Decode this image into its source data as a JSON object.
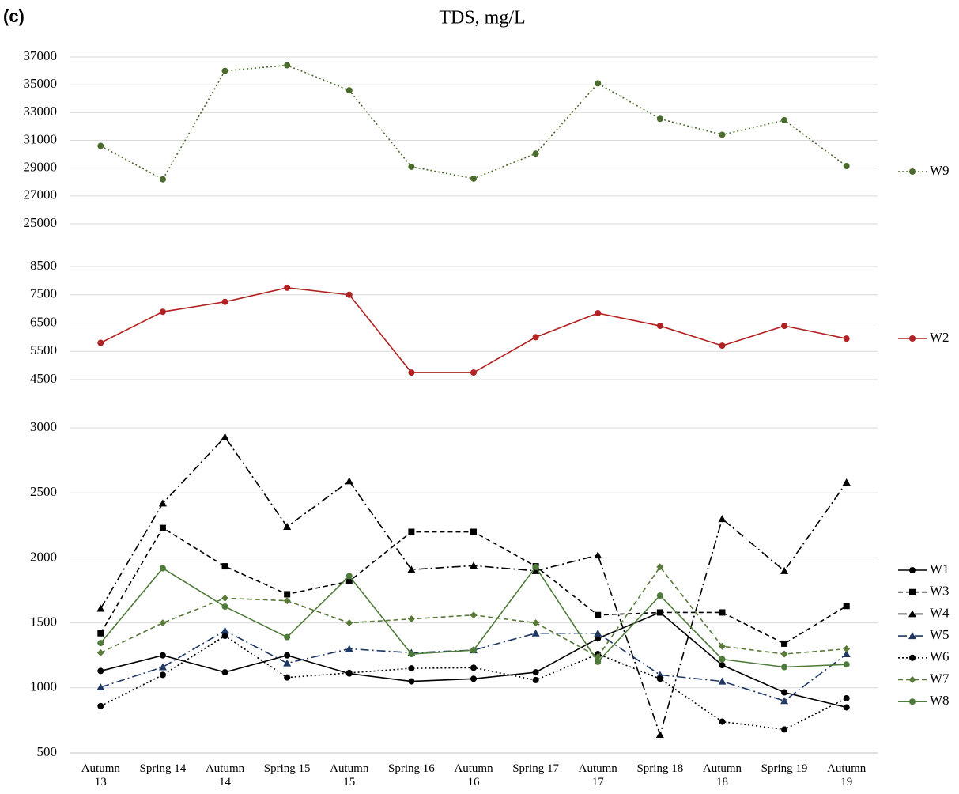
{
  "label": "(c)",
  "chart_data": [
    {
      "type": "line",
      "title": "TDS, mg/L",
      "ylim": [
        25000,
        37000
      ],
      "yticks": [
        25000,
        27000,
        29000,
        31000,
        33000,
        35000,
        37000
      ],
      "grid": true,
      "legend": "right",
      "series": [
        {
          "name": "W9",
          "color": "#4b6b2c",
          "dash": "dotted",
          "marker": "circle",
          "values": [
            30600,
            28200,
            36000,
            36400,
            34600,
            29100,
            28250,
            30050,
            35100,
            32550,
            31400,
            32450,
            29150
          ]
        }
      ]
    },
    {
      "type": "line",
      "ylim": [
        4500,
        8500
      ],
      "yticks": [
        4500,
        5500,
        6500,
        7500,
        8500
      ],
      "grid": true,
      "legend": "right",
      "series": [
        {
          "name": "W2",
          "color": "#b22222",
          "dash": "solid",
          "marker": "circle",
          "values": [
            5800,
            6900,
            7250,
            7750,
            7500,
            4750,
            4750,
            6000,
            6850,
            6400,
            5700,
            6400,
            5950
          ]
        }
      ]
    },
    {
      "type": "line",
      "ylim": [
        500,
        3000
      ],
      "yticks": [
        500,
        1000,
        1500,
        2000,
        2500,
        3000
      ],
      "grid": true,
      "legend": "right",
      "categories": [
        "Autumn\n13",
        "Spring 14",
        "Autumn\n14",
        "Spring 15",
        "Autumn\n15",
        "Spring 16",
        "Autumn\n16",
        "Spring 17",
        "Autumn\n17",
        "Spring 18",
        "Autumn\n18",
        "Spring 19",
        "Autumn\n19"
      ],
      "series": [
        {
          "name": "W1",
          "color": "#000000",
          "dash": "solid",
          "marker": "circle",
          "values": [
            1130,
            1250,
            1120,
            1250,
            1110,
            1050,
            1070,
            1120,
            1380,
            1580,
            1175,
            965,
            850
          ]
        },
        {
          "name": "W3",
          "color": "#000000",
          "dash": "dashed",
          "marker": "square",
          "values": [
            1420,
            2230,
            1935,
            1720,
            1820,
            2200,
            2200,
            1935,
            1560,
            1580,
            1580,
            1340,
            1630
          ]
        },
        {
          "name": "W4",
          "color": "#000000",
          "dash": "dashdot",
          "marker": "triangle",
          "values": [
            1610,
            2420,
            2930,
            2240,
            2590,
            1910,
            1940,
            1900,
            2020,
            640,
            2300,
            1900,
            2580
          ]
        },
        {
          "name": "W5",
          "color": "#1f3864",
          "dash": "dashdot",
          "marker": "triangle",
          "values": [
            1005,
            1160,
            1440,
            1190,
            1300,
            1270,
            1290,
            1420,
            1420,
            1100,
            1050,
            900,
            1260
          ]
        },
        {
          "name": "W6",
          "color": "#000000",
          "dash": "dotted",
          "marker": "circle",
          "values": [
            860,
            1100,
            1400,
            1080,
            1115,
            1150,
            1155,
            1060,
            1260,
            1070,
            740,
            680,
            920
          ]
        },
        {
          "name": "W7",
          "color": "#5a7a3a",
          "dash": "dashed",
          "marker": "diamond",
          "values": [
            1270,
            1500,
            1690,
            1670,
            1500,
            1530,
            1560,
            1500,
            1240,
            1930,
            1320,
            1260,
            1300
          ]
        },
        {
          "name": "W8",
          "color": "#4e7a3a",
          "dash": "solid",
          "marker": "circle",
          "values": [
            1345,
            1920,
            1625,
            1390,
            1860,
            1260,
            1290,
            1930,
            1200,
            1710,
            1220,
            1160,
            1180
          ]
        }
      ]
    }
  ]
}
